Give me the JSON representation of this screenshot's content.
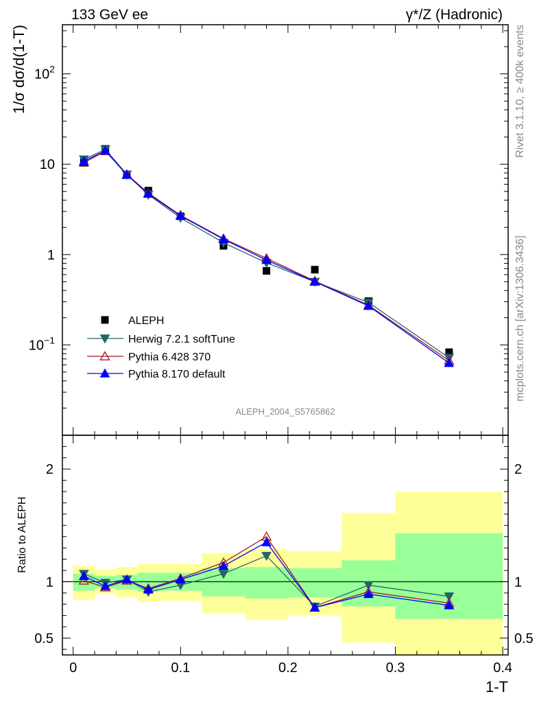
{
  "header": {
    "left_label": "133 GeV ee",
    "right_label": "γ*/Z (Hadronic)"
  },
  "side_labels": {
    "rivet": "Rivet 3.1.10, ≥ 400k events",
    "mcplots": "mcplots.cern.ch [arXiv:1306.3436]"
  },
  "analysis_id": "ALEPH_2004_S5765862",
  "colors": {
    "data": "#000000",
    "herwig": "#24656b",
    "pythia6": "#a5181e",
    "pythia8": "#0000ff",
    "band_outer": "#ffff99",
    "band_inner": "#99ff99"
  },
  "chart_data": [
    {
      "type": "line",
      "panel": "main",
      "yscale": "log",
      "ylabel": "1/σ  dσ/d(1-T)",
      "xlabel": "",
      "xlim": [
        -0.01,
        0.405
      ],
      "ylim": [
        0.01,
        350
      ],
      "y_ticks": [
        {
          "value": 0.1,
          "label": "10",
          "exp": "−1"
        },
        {
          "value": 1,
          "label": "1",
          "exp": ""
        },
        {
          "value": 10,
          "label": "10",
          "exp": ""
        },
        {
          "value": 100,
          "label": "10",
          "exp": "2"
        }
      ],
      "x": [
        0.01,
        0.03,
        0.05,
        0.07,
        0.1,
        0.14,
        0.18,
        0.225,
        0.275,
        0.35
      ],
      "series": [
        {
          "name": "ALEPH",
          "marker": "square",
          "values": [
            10.5,
            14.8,
            7.6,
            5.1,
            2.65,
            1.25,
            0.66,
            0.68,
            0.305,
            0.083
          ]
        },
        {
          "name": "Herwig 7.2.1 softTune",
          "marker": "triangle-down",
          "values": [
            11.3,
            14.6,
            7.7,
            4.6,
            2.55,
            1.35,
            0.81,
            0.5,
            0.295,
            0.072
          ]
        },
        {
          "name": "Pythia 6.428 370",
          "marker": "triangle-up-open",
          "values": [
            10.4,
            14.0,
            7.7,
            4.8,
            2.72,
            1.5,
            0.91,
            0.51,
            0.275,
            0.067
          ]
        },
        {
          "name": "Pythia 8.170 default",
          "marker": "triangle-up",
          "values": [
            10.8,
            14.1,
            7.6,
            4.7,
            2.68,
            1.48,
            0.87,
            0.5,
            0.27,
            0.063
          ]
        }
      ]
    },
    {
      "type": "line",
      "panel": "ratio",
      "yscale": "linear",
      "ylabel": "Ratio to ALEPH",
      "xlabel": "1-T",
      "xlim": [
        -0.01,
        0.405
      ],
      "ylim": [
        0.35,
        2.3
      ],
      "y_ticks": [
        0.5,
        1,
        2
      ],
      "x_ticks": [
        0,
        0.1,
        0.2,
        0.3,
        0.4
      ],
      "bins": [
        {
          "x0": 0.0,
          "x1": 0.02,
          "inner": [
            0.92,
            1.07
          ],
          "outer": [
            0.84,
            1.14
          ]
        },
        {
          "x0": 0.02,
          "x1": 0.04,
          "inner": [
            0.94,
            1.05
          ],
          "outer": [
            0.89,
            1.11
          ]
        },
        {
          "x0": 0.04,
          "x1": 0.06,
          "inner": [
            0.93,
            1.06
          ],
          "outer": [
            0.86,
            1.13
          ]
        },
        {
          "x0": 0.06,
          "x1": 0.08,
          "inner": [
            0.91,
            1.08
          ],
          "outer": [
            0.82,
            1.16
          ]
        },
        {
          "x0": 0.08,
          "x1": 0.12,
          "inner": [
            0.92,
            1.08
          ],
          "outer": [
            0.83,
            1.16
          ]
        },
        {
          "x0": 0.12,
          "x1": 0.16,
          "inner": [
            0.87,
            1.12
          ],
          "outer": [
            0.72,
            1.25
          ]
        },
        {
          "x0": 0.16,
          "x1": 0.2,
          "inner": [
            0.85,
            1.13
          ],
          "outer": [
            0.66,
            1.29
          ]
        },
        {
          "x0": 0.2,
          "x1": 0.25,
          "inner": [
            0.86,
            1.12
          ],
          "outer": [
            0.7,
            1.27
          ]
        },
        {
          "x0": 0.25,
          "x1": 0.3,
          "inner": [
            0.78,
            1.19
          ],
          "outer": [
            0.46,
            1.61
          ]
        },
        {
          "x0": 0.3,
          "x1": 0.4,
          "inner": [
            0.67,
            1.43
          ],
          "outer": [
            0.35,
            1.8
          ]
        }
      ],
      "x": [
        0.01,
        0.03,
        0.05,
        0.07,
        0.1,
        0.14,
        0.18,
        0.225,
        0.275,
        0.35
      ],
      "series": [
        {
          "name": "Herwig 7.2.1 softTune",
          "marker": "triangle-down",
          "values": [
            1.07,
            0.99,
            1.02,
            0.91,
            0.97,
            1.07,
            1.23,
            0.78,
            0.97,
            0.87
          ]
        },
        {
          "name": "Pythia 6.428 370",
          "marker": "triangle-up-open",
          "values": [
            1.01,
            0.95,
            1.01,
            0.94,
            1.03,
            1.17,
            1.4,
            0.77,
            0.91,
            0.81
          ]
        },
        {
          "name": "Pythia 8.170 default",
          "marker": "triangle-up",
          "values": [
            1.05,
            0.96,
            1.02,
            0.93,
            1.02,
            1.14,
            1.35,
            0.77,
            0.89,
            0.79
          ]
        }
      ]
    }
  ]
}
